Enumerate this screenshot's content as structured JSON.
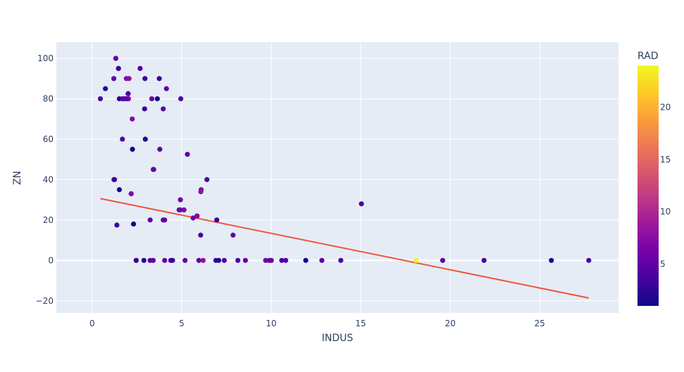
{
  "chart_data": {
    "type": "scatter",
    "xlabel": "INDUS",
    "ylabel": "ZN",
    "xlim": [
      -2,
      29.4
    ],
    "ylim": [
      -26,
      108
    ],
    "grid": true,
    "x_ticks": [
      0,
      5,
      10,
      15,
      20,
      25
    ],
    "y_ticks": [
      -20,
      0,
      20,
      40,
      60,
      80,
      100
    ],
    "colorbar": {
      "title": "RAD",
      "range": [
        1,
        24
      ],
      "ticks": [
        5,
        10,
        15,
        20
      ],
      "colorscale": [
        "#0d0887",
        "#46039f",
        "#7201a8",
        "#9c179e",
        "#bd3786",
        "#d8576b",
        "#ed7953",
        "#fb9f3a",
        "#fdca26",
        "#f0f921"
      ]
    },
    "trendline": {
      "color": "#ef553b",
      "x": [
        0.46,
        27.74
      ],
      "y": [
        30.6,
        -18.6
      ]
    },
    "series": [
      {
        "x": [
          0.46,
          0.74,
          1.21,
          1.25,
          1.32,
          1.38,
          1.47,
          1.52,
          1.52,
          1.69,
          1.76,
          1.89,
          1.91,
          2.01,
          2.02,
          2.03,
          2.06,
          2.18,
          2.24,
          2.25,
          2.31,
          2.68,
          2.93,
          2.95,
          2.97,
          3.24,
          3.33,
          3.41,
          3.44,
          3.64,
          3.75,
          3.78,
          3.97,
          4.05,
          4.15,
          4.86,
          4.93,
          4.95,
          5.13,
          5.32,
          5.64,
          5.86,
          6.06,
          6.09,
          6.96,
          7.87,
          15.04,
          1.32,
          1.22,
          1.69,
          2.46,
          1.89,
          1.47,
          5.86,
          6.07,
          6.41,
          4.93,
          1.91,
          2.01,
          1.76,
          1.89,
          2.18,
          2.46,
          2.89,
          3.24,
          3.41,
          3.97,
          4.05,
          4.39,
          4.49,
          5.19,
          5.96,
          6.2,
          6.91,
          7.07,
          7.38,
          8.14,
          8.56,
          9.69,
          9.9,
          10.01,
          10.59,
          10.81,
          11.93,
          12.83,
          13.89,
          18.1,
          19.58,
          21.89,
          25.65,
          27.74
        ],
        "y": [
          80,
          85,
          90,
          40,
          100,
          17.5,
          95,
          35,
          80,
          80,
          80,
          80,
          90,
          82.5,
          80,
          80,
          90,
          33,
          70,
          55,
          18,
          95,
          75,
          90,
          60,
          20,
          80,
          45,
          45,
          80,
          90,
          55,
          20,
          20,
          85,
          25,
          30,
          80,
          25,
          52.5,
          21,
          22,
          12.5,
          35,
          20,
          12.5,
          28,
          100,
          40,
          60,
          0,
          80,
          95,
          22,
          34,
          40,
          25,
          80,
          82.5,
          80,
          80,
          33,
          0,
          0,
          0,
          0,
          75,
          0,
          0,
          0,
          0,
          0,
          0,
          0,
          0,
          0,
          0,
          0,
          0,
          0,
          0,
          0,
          0,
          0,
          0,
          0,
          0,
          0,
          0,
          0,
          0
        ],
        "rad": [
          4,
          2,
          5,
          3,
          5,
          3,
          3,
          1,
          2,
          4,
          5,
          5,
          7,
          4,
          6,
          7,
          8,
          7,
          7,
          1,
          1,
          4,
          3,
          3,
          2,
          5,
          5,
          6,
          5,
          1,
          3,
          5,
          5,
          5,
          5,
          4,
          6,
          4,
          7,
          5,
          6,
          7,
          4,
          7,
          3,
          5,
          4,
          5,
          3,
          4,
          3,
          5,
          3,
          7,
          8,
          4,
          6,
          7,
          4,
          5,
          5,
          7,
          3,
          2,
          4,
          5,
          5,
          5,
          4,
          3,
          5,
          5,
          8,
          3,
          2,
          4,
          4,
          5,
          6,
          4,
          6,
          4,
          4,
          1,
          5,
          4,
          24,
          5,
          4,
          2,
          4
        ]
      }
    ]
  }
}
